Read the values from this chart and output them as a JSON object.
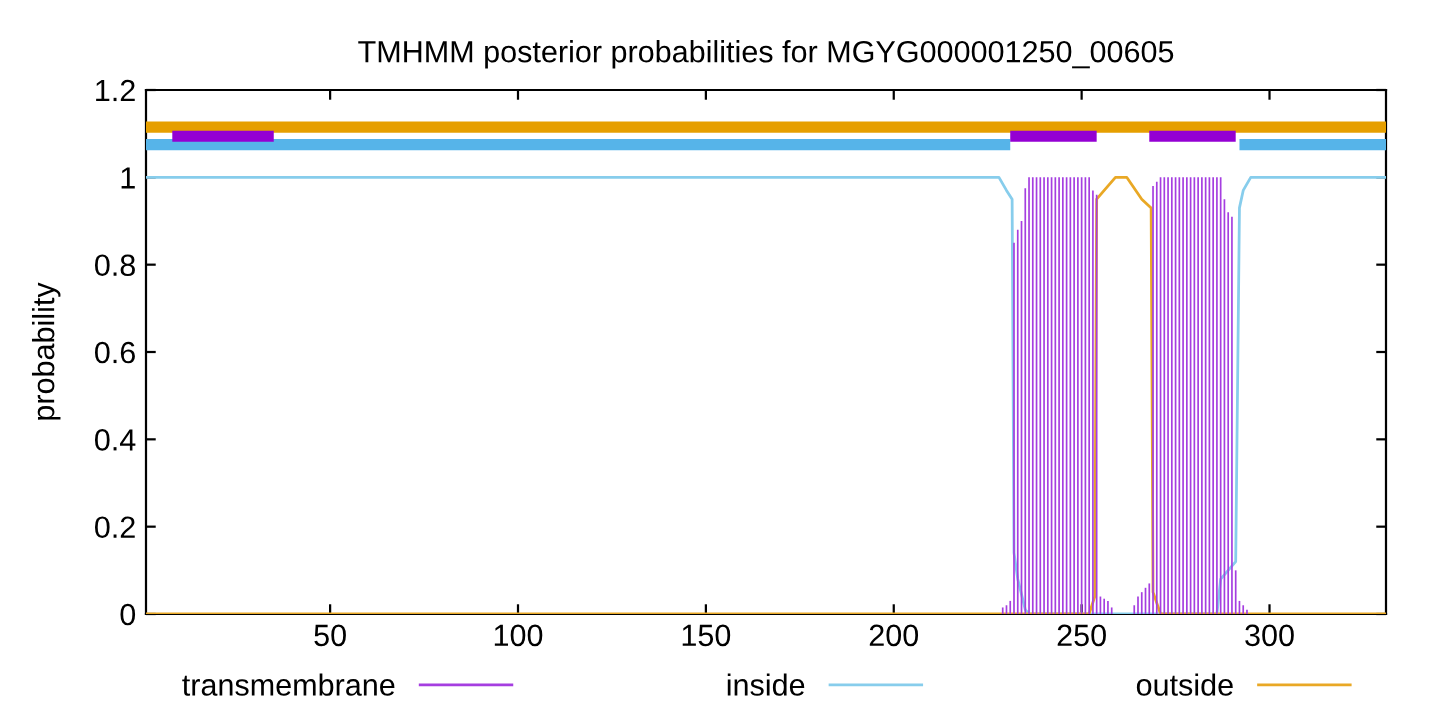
{
  "chart_data": {
    "type": "line",
    "title": "TMHMM posterior probabilities for MGYG000001250_00605",
    "ylabel": "probability",
    "xlim": [
      1,
      331
    ],
    "xticks": [
      50,
      100,
      150,
      200,
      250,
      300
    ],
    "ylim": [
      0,
      1.2
    ],
    "yticks": [
      0,
      0.2,
      0.4,
      0.6,
      0.8,
      1,
      1.2
    ],
    "grid": false,
    "legend": "bottom",
    "series": [
      {
        "name": "transmembrane",
        "type": "bar",
        "color": "#a53ee0",
        "x": [
          229,
          230,
          231,
          232,
          233,
          234,
          235,
          236,
          237,
          238,
          239,
          240,
          241,
          242,
          243,
          244,
          245,
          246,
          247,
          248,
          249,
          250,
          251,
          252,
          253,
          254,
          255,
          256,
          257,
          258,
          264,
          265,
          266,
          267,
          268,
          269,
          270,
          271,
          272,
          273,
          274,
          275,
          276,
          277,
          278,
          279,
          280,
          281,
          282,
          283,
          284,
          285,
          286,
          287,
          288,
          289,
          290,
          291,
          292,
          293,
          294
        ],
        "values": [
          0.015,
          0.02,
          0.03,
          0.85,
          0.88,
          0.9,
          0.975,
          1,
          1,
          1,
          1,
          1,
          1,
          1,
          1,
          1,
          1,
          1,
          1,
          1,
          1,
          1,
          1,
          1,
          0.97,
          0.96,
          0.04,
          0.035,
          0.03,
          0.015,
          0.02,
          0.04,
          0.05,
          0.06,
          0.07,
          0.98,
          0.99,
          1,
          1,
          1,
          1,
          1,
          1,
          1,
          1,
          1,
          1,
          1,
          1,
          1,
          1,
          1,
          1,
          1,
          0.95,
          0.92,
          0.91,
          0.1,
          0.03,
          0.02,
          0.01
        ]
      },
      {
        "name": "inside",
        "color": "#87cdec",
        "x": [
          1,
          228,
          230,
          231.5,
          232,
          233,
          235,
          236,
          286,
          287,
          291,
          292,
          293,
          295,
          331
        ],
        "values": [
          1,
          1,
          0.97,
          0.95,
          0.14,
          0.08,
          0.01,
          0,
          0,
          0.08,
          0.12,
          0.93,
          0.97,
          1,
          1
        ]
      },
      {
        "name": "outside",
        "color": "#e9a825",
        "x": [
          1,
          252,
          253.5,
          254,
          256,
          259,
          262,
          266,
          268.5,
          269,
          271,
          331
        ],
        "values": [
          0,
          0,
          0.04,
          0.95,
          0.97,
          1,
          1,
          0.95,
          0.93,
          0.05,
          0,
          0
        ]
      },
      {
        "type": "step",
        "color": "#e69f00",
        "x": [
          1,
          331
        ],
        "values": [
          1.115,
          1.115
        ]
      },
      {
        "type": "step",
        "color": "#56b4e9",
        "x": [
          1,
          231
        ],
        "values": [
          1.075,
          1.075
        ]
      },
      {
        "type": "step",
        "color": "#56b4e9",
        "x": [
          292,
          331
        ],
        "values": [
          1.075,
          1.075
        ]
      },
      {
        "type": "step",
        "color": "#9400d3",
        "x": [
          8,
          35
        ],
        "values": [
          1.094,
          1.094
        ]
      },
      {
        "type": "step",
        "color": "#9400d3",
        "x": [
          231,
          254
        ],
        "values": [
          1.094,
          1.094
        ]
      },
      {
        "type": "step",
        "color": "#9400d3",
        "x": [
          268,
          291
        ],
        "values": [
          1.094,
          1.094
        ]
      }
    ]
  }
}
